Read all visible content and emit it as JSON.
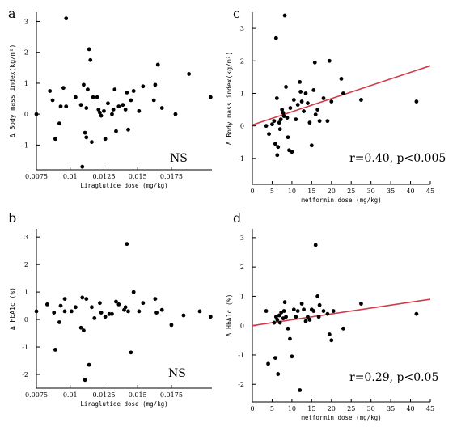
{
  "chart_data": [
    {
      "panel": "a",
      "type": "scatter",
      "xlabel": "Liraglutide dose (mg/kg)",
      "ylabel": "Δ Body mass index(kg/m²)",
      "xlim": [
        0.0075,
        0.0205
      ],
      "ylim": [
        -1.8,
        3.3
      ],
      "xticks": [
        {
          "v": 0.0075,
          "l": "0.0075"
        },
        {
          "v": 0.01,
          "l": "0.01"
        },
        {
          "v": 0.0125,
          "l": "0.0125"
        },
        {
          "v": 0.015,
          "l": "0.015"
        },
        {
          "v": 0.0175,
          "l": "0.0175"
        }
      ],
      "yticks": [
        {
          "v": -1,
          "l": "-1"
        },
        {
          "v": 0,
          "l": "0"
        },
        {
          "v": 1,
          "l": "1"
        },
        {
          "v": 2,
          "l": "2"
        },
        {
          "v": 3,
          "l": "3"
        }
      ],
      "annotation": "NS",
      "regression": null,
      "points": [
        [
          0.0075,
          0.0
        ],
        [
          0.0085,
          0.75
        ],
        [
          0.0087,
          0.45
        ],
        [
          0.0089,
          -0.8
        ],
        [
          0.0092,
          -0.3
        ],
        [
          0.0093,
          0.25
        ],
        [
          0.0095,
          0.85
        ],
        [
          0.0097,
          0.25
        ],
        [
          0.0097,
          3.1
        ],
        [
          0.0104,
          0.55
        ],
        [
          0.0108,
          0.3
        ],
        [
          0.011,
          0.95
        ],
        [
          0.0111,
          -0.6
        ],
        [
          0.0112,
          -0.75
        ],
        [
          0.0112,
          0.2
        ],
        [
          0.0109,
          -1.7
        ],
        [
          0.0113,
          0.8
        ],
        [
          0.0114,
          2.1
        ],
        [
          0.0115,
          1.75
        ],
        [
          0.0116,
          -0.9
        ],
        [
          0.0117,
          0.55
        ],
        [
          0.012,
          0.55
        ],
        [
          0.0121,
          0.15
        ],
        [
          0.0122,
          0.05
        ],
        [
          0.0123,
          -0.05
        ],
        [
          0.0125,
          0.1
        ],
        [
          0.0126,
          -0.8
        ],
        [
          0.0128,
          0.35
        ],
        [
          0.0131,
          0.0
        ],
        [
          0.0132,
          0.15
        ],
        [
          0.0133,
          0.8
        ],
        [
          0.0134,
          -0.55
        ],
        [
          0.0136,
          0.25
        ],
        [
          0.0139,
          0.3
        ],
        [
          0.0141,
          0.15
        ],
        [
          0.0142,
          0.7
        ],
        [
          0.0143,
          -0.5
        ],
        [
          0.0145,
          0.45
        ],
        [
          0.0147,
          0.75
        ],
        [
          0.0151,
          0.1
        ],
        [
          0.0154,
          0.9
        ],
        [
          0.0162,
          0.45
        ],
        [
          0.0163,
          0.95
        ],
        [
          0.0165,
          1.6
        ],
        [
          0.0168,
          0.2
        ],
        [
          0.0178,
          0.0
        ],
        [
          0.0188,
          1.3
        ],
        [
          0.0204,
          0.55
        ]
      ]
    },
    {
      "panel": "b",
      "type": "scatter",
      "xlabel": "Liraglutide dose (mg/kg)",
      "ylabel": "Δ HbA1c (%)",
      "xlim": [
        0.0075,
        0.0205
      ],
      "ylim": [
        -2.5,
        3.3
      ],
      "xticks": [
        {
          "v": 0.0075,
          "l": "0.0075"
        },
        {
          "v": 0.01,
          "l": "0.01"
        },
        {
          "v": 0.0125,
          "l": "0.0125"
        },
        {
          "v": 0.015,
          "l": "0.015"
        },
        {
          "v": 0.0175,
          "l": "0.0175"
        }
      ],
      "yticks": [
        {
          "v": -2,
          "l": "-2"
        },
        {
          "v": -1,
          "l": "-1"
        },
        {
          "v": 0,
          "l": "0"
        },
        {
          "v": 1,
          "l": "1"
        },
        {
          "v": 2,
          "l": "2"
        },
        {
          "v": 3,
          "l": "3"
        }
      ],
      "annotation": "NS",
      "regression": null,
      "points": [
        [
          0.0075,
          0.3
        ],
        [
          0.0083,
          0.55
        ],
        [
          0.0088,
          0.25
        ],
        [
          0.0089,
          -1.1
        ],
        [
          0.0092,
          -0.1
        ],
        [
          0.0093,
          0.5
        ],
        [
          0.0096,
          0.75
        ],
        [
          0.0096,
          0.3
        ],
        [
          0.0101,
          0.3
        ],
        [
          0.0104,
          0.45
        ],
        [
          0.0108,
          -0.3
        ],
        [
          0.0109,
          0.8
        ],
        [
          0.011,
          -0.4
        ],
        [
          0.0111,
          -2.2
        ],
        [
          0.0112,
          0.75
        ],
        [
          0.0114,
          -1.65
        ],
        [
          0.0116,
          0.45
        ],
        [
          0.0118,
          0.05
        ],
        [
          0.0122,
          0.6
        ],
        [
          0.0123,
          0.25
        ],
        [
          0.0126,
          0.1
        ],
        [
          0.0129,
          0.2
        ],
        [
          0.0131,
          0.2
        ],
        [
          0.0134,
          0.65
        ],
        [
          0.0136,
          0.55
        ],
        [
          0.014,
          0.35
        ],
        [
          0.0141,
          0.45
        ],
        [
          0.0142,
          2.75
        ],
        [
          0.0143,
          0.3
        ],
        [
          0.0145,
          -1.2
        ],
        [
          0.0147,
          1.0
        ],
        [
          0.0151,
          0.3
        ],
        [
          0.0154,
          0.6
        ],
        [
          0.0163,
          0.75
        ],
        [
          0.0164,
          0.25
        ],
        [
          0.0168,
          0.35
        ],
        [
          0.0175,
          -0.2
        ],
        [
          0.0184,
          0.15
        ],
        [
          0.0196,
          0.3
        ],
        [
          0.0204,
          0.1
        ]
      ]
    },
    {
      "panel": "c",
      "type": "scatter",
      "xlabel": "metformin dose (mg/kg)",
      "ylabel": "Δ Body mass index(kg/m²)",
      "xlim": [
        0,
        45
      ],
      "ylim": [
        -1.8,
        3.5
      ],
      "xticks": [
        {
          "v": 0,
          "l": "0"
        },
        {
          "v": 5,
          "l": "5"
        },
        {
          "v": 10,
          "l": "10"
        },
        {
          "v": 15,
          "l": "15"
        },
        {
          "v": 20,
          "l": "20"
        },
        {
          "v": 25,
          "l": "25"
        },
        {
          "v": 30,
          "l": "30"
        },
        {
          "v": 35,
          "l": "35"
        },
        {
          "v": 40,
          "l": "40"
        },
        {
          "v": 45,
          "l": "45"
        }
      ],
      "yticks": [
        {
          "v": -1,
          "l": "-1"
        },
        {
          "v": 0,
          "l": "0"
        },
        {
          "v": 1,
          "l": "1"
        },
        {
          "v": 2,
          "l": "2"
        },
        {
          "v": 3,
          "l": "3"
        }
      ],
      "annotation": "r=0.40, p<0.005",
      "regression": {
        "x": [
          0,
          45
        ],
        "y": [
          0.03,
          1.85
        ]
      },
      "points": [
        [
          3.5,
          0.0
        ],
        [
          4.2,
          -0.25
        ],
        [
          5.0,
          0.05
        ],
        [
          5.5,
          0.15
        ],
        [
          5.8,
          -0.55
        ],
        [
          6.0,
          2.7
        ],
        [
          6.2,
          0.85
        ],
        [
          6.3,
          -0.9
        ],
        [
          6.5,
          -0.65
        ],
        [
          6.8,
          0.1
        ],
        [
          7.0,
          -0.1
        ],
        [
          7.2,
          0.2
        ],
        [
          7.5,
          0.5
        ],
        [
          7.8,
          0.4
        ],
        [
          8.0,
          0.3
        ],
        [
          8.2,
          3.4
        ],
        [
          8.5,
          1.2
        ],
        [
          8.8,
          0.25
        ],
        [
          9.0,
          -0.35
        ],
        [
          9.3,
          -0.75
        ],
        [
          9.6,
          0.55
        ],
        [
          10.0,
          -0.8
        ],
        [
          10.5,
          0.8
        ],
        [
          11.0,
          0.2
        ],
        [
          11.5,
          0.65
        ],
        [
          12.0,
          1.35
        ],
        [
          12.2,
          1.05
        ],
        [
          12.5,
          0.75
        ],
        [
          13.0,
          0.45
        ],
        [
          13.5,
          1.0
        ],
        [
          14.0,
          0.7
        ],
        [
          14.5,
          0.1
        ],
        [
          15.0,
          -0.6
        ],
        [
          15.5,
          1.1
        ],
        [
          15.8,
          1.95
        ],
        [
          16.0,
          0.35
        ],
        [
          16.5,
          0.5
        ],
        [
          17.0,
          0.15
        ],
        [
          18.0,
          0.85
        ],
        [
          19.0,
          0.15
        ],
        [
          19.5,
          2.0
        ],
        [
          20.0,
          0.75
        ],
        [
          22.5,
          1.45
        ],
        [
          23.0,
          1.0
        ],
        [
          27.5,
          0.8
        ],
        [
          41.5,
          0.75
        ]
      ]
    },
    {
      "panel": "d",
      "type": "scatter",
      "xlabel": "metformin dose (mg/kg)",
      "ylabel": "Δ HbA1c (%)",
      "xlim": [
        0,
        45
      ],
      "ylim": [
        -2.6,
        3.3
      ],
      "xticks": [
        {
          "v": 0,
          "l": "0"
        },
        {
          "v": 5,
          "l": "5"
        },
        {
          "v": 10,
          "l": "10"
        },
        {
          "v": 15,
          "l": "15"
        },
        {
          "v": 20,
          "l": "20"
        },
        {
          "v": 25,
          "l": "25"
        },
        {
          "v": 30,
          "l": "30"
        },
        {
          "v": 35,
          "l": "35"
        },
        {
          "v": 40,
          "l": "40"
        },
        {
          "v": 45,
          "l": "45"
        }
      ],
      "yticks": [
        {
          "v": -2,
          "l": "-2"
        },
        {
          "v": -1,
          "l": "-1"
        },
        {
          "v": 0,
          "l": "0"
        },
        {
          "v": 1,
          "l": "1"
        },
        {
          "v": 2,
          "l": "2"
        },
        {
          "v": 3,
          "l": "3"
        }
      ],
      "annotation": "r=0.29, p<0.05",
      "regression": {
        "x": [
          0,
          45
        ],
        "y": [
          0.0,
          0.9
        ]
      },
      "points": [
        [
          3.5,
          0.5
        ],
        [
          4.0,
          -1.3
        ],
        [
          5.5,
          0.1
        ],
        [
          5.8,
          -1.1
        ],
        [
          6.0,
          0.3
        ],
        [
          6.3,
          0.2
        ],
        [
          6.5,
          -1.65
        ],
        [
          6.8,
          0.35
        ],
        [
          7.0,
          0.1
        ],
        [
          7.3,
          0.45
        ],
        [
          7.8,
          0.25
        ],
        [
          8.0,
          0.5
        ],
        [
          8.2,
          0.8
        ],
        [
          8.5,
          0.3
        ],
        [
          9.0,
          -0.1
        ],
        [
          9.5,
          -0.45
        ],
        [
          10.0,
          -1.05
        ],
        [
          10.5,
          0.55
        ],
        [
          11.0,
          0.3
        ],
        [
          11.5,
          0.5
        ],
        [
          12.0,
          -2.2
        ],
        [
          12.5,
          0.75
        ],
        [
          13.0,
          0.55
        ],
        [
          13.5,
          0.15
        ],
        [
          14.0,
          0.3
        ],
        [
          14.5,
          0.2
        ],
        [
          15.0,
          0.55
        ],
        [
          15.5,
          0.5
        ],
        [
          16.0,
          2.75
        ],
        [
          16.5,
          1.0
        ],
        [
          16.8,
          0.3
        ],
        [
          17.0,
          0.7
        ],
        [
          18.0,
          0.5
        ],
        [
          19.0,
          0.4
        ],
        [
          19.5,
          -0.3
        ],
        [
          20.0,
          -0.5
        ],
        [
          20.5,
          0.5
        ],
        [
          23.0,
          -0.1
        ],
        [
          27.5,
          0.75
        ],
        [
          41.5,
          0.4
        ]
      ]
    }
  ]
}
